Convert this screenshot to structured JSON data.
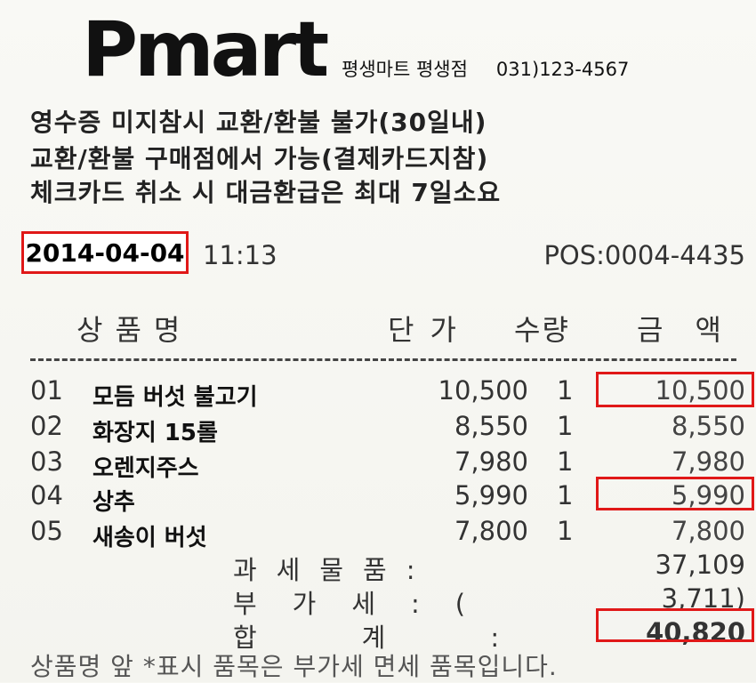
{
  "store": {
    "logo": "Pmart",
    "name": "평생마트 평생점",
    "phone": "031)123-4567"
  },
  "notice": [
    "영수증 미지참시 교환/환불 불가(30일내)",
    "교환/환불 구매점에서 가능(결제카드지참)",
    "체크카드 취소 시 대금환급은 최대 7일소요"
  ],
  "meta": {
    "date": "2014-04-04",
    "time": "11:13",
    "pos": "POS:0004-4435"
  },
  "headers": {
    "name": "상품명",
    "price": "단가",
    "qty": "수량",
    "amount": "금액"
  },
  "items": [
    {
      "no": "01",
      "name": "모듬 버섯 불고기",
      "price": "10,500",
      "qty": "1",
      "amount": "10,500"
    },
    {
      "no": "02",
      "name": "화장지 15롤",
      "price": "8,550",
      "qty": "1",
      "amount": "8,550"
    },
    {
      "no": "03",
      "name": "오렌지주스",
      "price": "7,980",
      "qty": "1",
      "amount": "7,980"
    },
    {
      "no": "04",
      "name": "상추",
      "price": "5,990",
      "qty": "1",
      "amount": "5,990"
    },
    {
      "no": "05",
      "name": "새송이 버섯",
      "price": "7,800",
      "qty": "1",
      "amount": "7,800"
    }
  ],
  "totals": {
    "taxable_label": "과세물품:",
    "taxable_value": "37,109",
    "vat_label": "부가세:(",
    "vat_value": "3,711)",
    "total_label": "합계:",
    "total_value": "40,820"
  },
  "footer": "상품명 앞 *표시 품목은 부가세 면세 품목입니다.",
  "highlight_color": "#e01818"
}
